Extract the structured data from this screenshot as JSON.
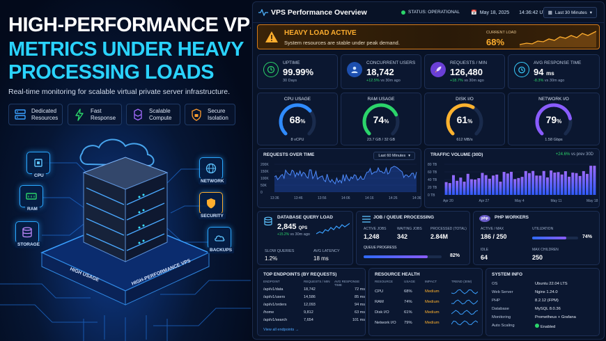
{
  "hero": {
    "title_line1": "HIGH-PERFORMANCE VPS",
    "title_line2": "METRICS UNDER HEAVY",
    "title_line3": "PROCESSING LOADS",
    "subtitle": "Real-time monitoring for scalable virtual private server infrastructure.",
    "features": [
      {
        "line1": "Dedicated",
        "line2": "Resources",
        "icon": "server-icon"
      },
      {
        "line1": "Fast",
        "line2": "Response",
        "icon": "lightning-icon"
      },
      {
        "line1": "Scalable",
        "line2": "Compute",
        "icon": "cubes-icon"
      },
      {
        "line1": "Secure",
        "line2": "Isolation",
        "icon": "lock-icon"
      }
    ],
    "tags": {
      "cpu": "CPU",
      "ram": "RAM",
      "storage": "STORAGE",
      "network": "NETWORK",
      "security": "SECURITY",
      "backups": "BACKUPS"
    },
    "platform_labels": {
      "left": "HIGH USAGE",
      "right": "HIGH-PERFORMANCE VPS"
    }
  },
  "dashboard": {
    "title": "VPS Performance Overview",
    "status": "STATUS: OPERATIONAL",
    "date": "May 18, 2025",
    "time": "14:36:42 UTC",
    "range": "Last 30 Minutes",
    "alert": {
      "title": "HEAVY LOAD ACTIVE",
      "message": "System resources are stable under peak demand.",
      "load_label": "CURRENT LOAD",
      "load_value": "68%"
    },
    "kpis": [
      {
        "label": "UPTIME",
        "value": "99.99%",
        "sub": "30 Days",
        "delta": ""
      },
      {
        "label": "CONCURRENT USERS",
        "value": "18,742",
        "delta": "+12.5%",
        "sub": "vs 30m ago"
      },
      {
        "label": "REQUESTS / MIN",
        "value": "126,480",
        "delta": "+18.7%",
        "sub": "vs 30m ago"
      },
      {
        "label": "AVG RESPONSE TIME",
        "value": "94",
        "unit": "ms",
        "delta": "-8.3%",
        "sub": "vs 30m ago"
      }
    ],
    "gauges": [
      {
        "label": "CPU USAGE",
        "value": "68",
        "pct": 68,
        "sub": "8 vCPU",
        "color": "#2f8bff"
      },
      {
        "label": "RAM USAGE",
        "value": "74",
        "pct": 74,
        "sub": "23.7 GB / 32 GB",
        "color": "#2bd46a"
      },
      {
        "label": "DISK I/O",
        "value": "61",
        "pct": 61,
        "sub": "612 MB/s",
        "color": "#ffb22e"
      },
      {
        "label": "NETWORK I/O",
        "value": "79",
        "pct": 79,
        "sub": "1.58 Gbps",
        "color": "#8a5cff"
      }
    ],
    "requests_chart": {
      "title": "REQUESTS OVER TIME",
      "range": "Last 60 Minutes",
      "y_ticks": [
        "200K",
        "150K",
        "100K",
        "50K",
        "0"
      ],
      "x_ticks": [
        "13:36",
        "13:46",
        "13:56",
        "14:06",
        "14:16",
        "14:26",
        "14:36"
      ]
    },
    "traffic_chart": {
      "title": "TRAFFIC VOLUME (30D)",
      "delta": "+24.6%",
      "delta_sub": "vs prev 30D",
      "y_ticks": [
        "80 TB",
        "60 TB",
        "40 TB",
        "20 TB",
        "0 TB"
      ],
      "x_ticks": [
        "Apr 20",
        "Apr 27",
        "May 4",
        "May 11",
        "May 18"
      ]
    },
    "db": {
      "title": "DATABASE QUERY LOAD",
      "value": "2,845",
      "unit": "QPS",
      "delta": "+15.2%",
      "delta_sub": "vs 30m ago",
      "slow_label": "SLOW QUERIES",
      "slow_value": "1.2%",
      "latency_label": "AVG LATENCY",
      "latency_value": "18 ms"
    },
    "jobs": {
      "title": "JOB / QUEUE PROCESSING",
      "active_label": "ACTIVE JOBS",
      "active_value": "1,248",
      "waiting_label": "WAITING JOBS",
      "waiting_value": "342",
      "processed_label": "PROCESSED (TOTAL)",
      "processed_value": "2.84M",
      "progress_label": "QUEUE PROGRESS",
      "progress_value": "82%",
      "progress": 0.82
    },
    "php": {
      "title": "PHP WORKERS",
      "am_label": "ACTIVE / MAX",
      "am_value": "186 / 250",
      "util_label": "UTILIZATION",
      "util_value": "74%",
      "util": 0.74,
      "idle_label": "IDLE",
      "idle_value": "64",
      "maxc_label": "MAX CHILDREN",
      "maxc_value": "250"
    },
    "endpoints": {
      "title": "TOP ENDPOINTS (BY REQUESTS)",
      "headers": [
        "ENDPOINT",
        "REQUESTS / MIN",
        "AVG RESPONSE TIME"
      ],
      "rows": [
        [
          "/api/v1/data",
          "18,742",
          "72 ms"
        ],
        [
          "/api/v1/users",
          "14,586",
          "85 ms"
        ],
        [
          "/api/v1/orders",
          "12,093",
          "94 ms"
        ],
        [
          "/home",
          "9,812",
          "63 ms"
        ],
        [
          "/api/v1/search",
          "7,654",
          "101 ms"
        ]
      ],
      "link": "View all endpoints →"
    },
    "health": {
      "title": "RESOURCE HEALTH",
      "headers": [
        "RESOURCE",
        "USAGE",
        "IMPACT",
        "TREND (30M)"
      ],
      "rows": [
        [
          "CPU",
          "68%",
          "Medium"
        ],
        [
          "RAM",
          "74%",
          "Medium"
        ],
        [
          "Disk I/O",
          "61%",
          "Medium"
        ],
        [
          "Network I/O",
          "79%",
          "Medium"
        ]
      ]
    },
    "sysinfo": {
      "title": "SYSTEM INFO",
      "rows": [
        [
          "OS",
          "Ubuntu 22.04 LTS"
        ],
        [
          "Web Server",
          "Nginx 1.24.0"
        ],
        [
          "PHP",
          "8.2.12 (FPM)"
        ],
        [
          "Database",
          "MySQL 8.0.36"
        ],
        [
          "Monitoring",
          "Prometheus + Grafana"
        ],
        [
          "Auto Scaling",
          "Enabled"
        ]
      ]
    }
  }
}
